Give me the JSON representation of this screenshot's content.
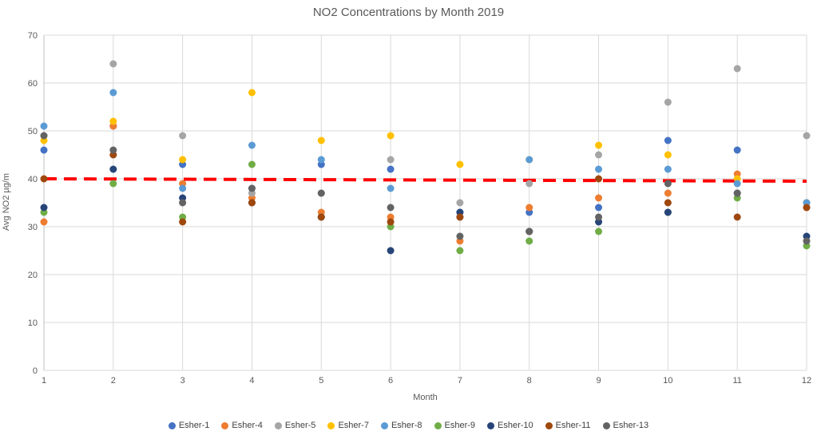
{
  "title": "NO2 Concentrations by Month 2019",
  "chart_data": {
    "type": "scatter",
    "title": "NO2 Concentrations by Month 2019",
    "xlabel": "Month",
    "ylabel": "Avg NO2 µg/m",
    "x": [
      1,
      2,
      3,
      4,
      5,
      6,
      7,
      8,
      9,
      10,
      11,
      12
    ],
    "xlim": [
      1,
      12
    ],
    "ylim": [
      0,
      70
    ],
    "y_ticks": [
      0,
      10,
      20,
      30,
      40,
      50,
      60,
      70
    ],
    "grid": true,
    "legend_position": "bottom",
    "colors": {
      "gridline": "#D9D9D9",
      "axis_text": "#595959",
      "trendline": "#FF0000"
    },
    "series": [
      {
        "name": "Esher-1",
        "color": "#4472C4",
        "values": [
          46,
          51,
          43,
          38,
          43,
          42,
          32,
          33,
          34,
          48,
          46,
          35
        ]
      },
      {
        "name": "Esher-4",
        "color": "#ED7D31",
        "values": [
          31,
          51,
          39,
          36,
          33,
          32,
          27,
          34,
          36,
          37,
          41,
          34
        ]
      },
      {
        "name": "Esher-5",
        "color": "#A5A5A5",
        "values": [
          49,
          64,
          49,
          37,
          37,
          44,
          35,
          39,
          45,
          56,
          63,
          49
        ]
      },
      {
        "name": "Esher-7",
        "color": "#FFC000",
        "values": [
          48,
          52,
          44,
          58,
          48,
          49,
          43,
          44,
          47,
          45,
          40,
          35
        ]
      },
      {
        "name": "Esher-8",
        "color": "#5B9BD5",
        "values": [
          51,
          58,
          38,
          47,
          44,
          38,
          33,
          44,
          42,
          42,
          39,
          35
        ]
      },
      {
        "name": "Esher-9",
        "color": "#70AD47",
        "values": [
          33,
          39,
          32,
          43,
          32,
          30,
          25,
          27,
          29,
          33,
          36,
          26
        ]
      },
      {
        "name": "Esher-10",
        "color": "#264478",
        "values": [
          34,
          42,
          36,
          35,
          32,
          25,
          33,
          29,
          31,
          33,
          37,
          28
        ]
      },
      {
        "name": "Esher-11",
        "color": "#9E480E",
        "values": [
          40,
          45,
          31,
          35,
          32,
          31,
          32,
          29,
          40,
          35,
          32,
          34
        ]
      },
      {
        "name": "Esher-13",
        "color": "#636363",
        "values": [
          49,
          46,
          35,
          38,
          37,
          34,
          28,
          29,
          32,
          39,
          37,
          27
        ]
      }
    ],
    "trendline": {
      "color": "#FF0000",
      "style": "dashed",
      "y_start": 40.0,
      "y_end": 39.5
    }
  }
}
